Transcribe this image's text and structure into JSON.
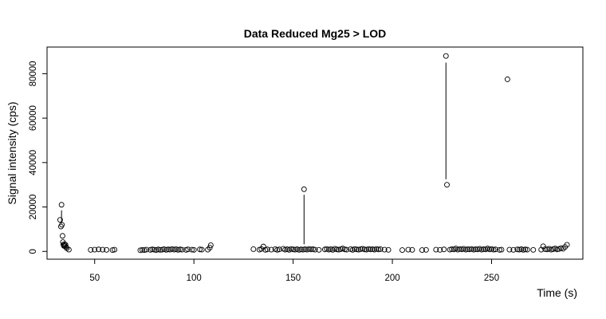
{
  "chart_data": {
    "type": "scatter",
    "title": "Data Reduced Mg25 > LOD",
    "xlabel": "Time (s)",
    "ylabel": "Signal intensity (cps)",
    "xlim": [
      26,
      296
    ],
    "ylim": [
      -3500,
      92000
    ],
    "x_ticks": [
      50,
      100,
      150,
      200,
      250
    ],
    "y_ticks": [
      0,
      20000,
      40000,
      60000,
      80000
    ],
    "grid": false,
    "legend": "none",
    "colors": {
      "points": "#000000",
      "axes": "#000000",
      "background": "#ffffff"
    },
    "points": [
      [
        32.6,
        14200
      ],
      [
        33.0,
        11200
      ],
      [
        33.3,
        21000
      ],
      [
        33.5,
        12000
      ],
      [
        33.8,
        7000
      ],
      [
        34.0,
        4200
      ],
      [
        34.2,
        3000
      ],
      [
        34.5,
        2500
      ],
      [
        34.8,
        3300
      ],
      [
        35.0,
        2400
      ],
      [
        35.3,
        3000
      ],
      [
        35.6,
        1900
      ],
      [
        36.0,
        1400
      ],
      [
        37.0,
        800
      ],
      [
        48,
        700
      ],
      [
        50,
        800
      ],
      [
        52,
        900
      ],
      [
        54,
        800
      ],
      [
        56,
        700
      ],
      [
        59,
        600
      ],
      [
        60,
        800
      ],
      [
        73,
        500
      ],
      [
        74,
        700
      ],
      [
        75,
        600
      ],
      [
        76,
        800
      ],
      [
        78,
        700
      ],
      [
        79,
        900
      ],
      [
        80,
        800
      ],
      [
        81,
        600
      ],
      [
        82,
        900
      ],
      [
        83,
        700
      ],
      [
        84,
        800
      ],
      [
        85,
        1000
      ],
      [
        86,
        700
      ],
      [
        87,
        900
      ],
      [
        88,
        800
      ],
      [
        89,
        1100
      ],
      [
        90,
        800
      ],
      [
        91,
        1000
      ],
      [
        92,
        700
      ],
      [
        93,
        900
      ],
      [
        94,
        800
      ],
      [
        96,
        700
      ],
      [
        97,
        900
      ],
      [
        99,
        800
      ],
      [
        100,
        700
      ],
      [
        103,
        900
      ],
      [
        104,
        800
      ],
      [
        107,
        800
      ],
      [
        108,
        1700
      ],
      [
        108.5,
        2800
      ],
      [
        130,
        1000
      ],
      [
        133,
        800
      ],
      [
        134,
        1100
      ],
      [
        135,
        2200
      ],
      [
        136,
        700
      ],
      [
        137,
        900
      ],
      [
        139,
        800
      ],
      [
        141,
        1000
      ],
      [
        142,
        700
      ],
      [
        143,
        900
      ],
      [
        145,
        1200
      ],
      [
        146,
        800
      ],
      [
        147,
        1000
      ],
      [
        148,
        700
      ],
      [
        149,
        1100
      ],
      [
        150,
        900
      ],
      [
        151,
        800
      ],
      [
        152,
        1000
      ],
      [
        153,
        700
      ],
      [
        154,
        900
      ],
      [
        155,
        800
      ],
      [
        155.5,
        28000
      ],
      [
        156,
        1000
      ],
      [
        157,
        800
      ],
      [
        158,
        1100
      ],
      [
        159,
        900
      ],
      [
        160,
        1000
      ],
      [
        161,
        800
      ],
      [
        163,
        700
      ],
      [
        166,
        900
      ],
      [
        167,
        1100
      ],
      [
        168,
        800
      ],
      [
        169,
        1000
      ],
      [
        170,
        700
      ],
      [
        171,
        1200
      ],
      [
        172,
        900
      ],
      [
        173,
        800
      ],
      [
        174,
        1000
      ],
      [
        175,
        1300
      ],
      [
        176,
        900
      ],
      [
        177,
        800
      ],
      [
        179,
        1000
      ],
      [
        180,
        700
      ],
      [
        181,
        1100
      ],
      [
        182,
        900
      ],
      [
        183,
        800
      ],
      [
        184,
        1000
      ],
      [
        185,
        1200
      ],
      [
        186,
        900
      ],
      [
        187,
        800
      ],
      [
        188,
        1100
      ],
      [
        189,
        900
      ],
      [
        190,
        1000
      ],
      [
        191,
        800
      ],
      [
        192,
        1100
      ],
      [
        193,
        900
      ],
      [
        194,
        1000
      ],
      [
        196,
        800
      ],
      [
        198,
        700
      ],
      [
        205,
        600
      ],
      [
        208,
        800
      ],
      [
        210,
        700
      ],
      [
        215,
        600
      ],
      [
        217,
        700
      ],
      [
        222,
        800
      ],
      [
        224,
        700
      ],
      [
        226,
        900
      ],
      [
        227,
        88000
      ],
      [
        227.5,
        30000
      ],
      [
        229,
        800
      ],
      [
        230,
        1000
      ],
      [
        231,
        900
      ],
      [
        232,
        1300
      ],
      [
        233,
        800
      ],
      [
        234,
        1100
      ],
      [
        235,
        900
      ],
      [
        236,
        1200
      ],
      [
        237,
        800
      ],
      [
        238,
        1000
      ],
      [
        239,
        900
      ],
      [
        240,
        1100
      ],
      [
        241,
        800
      ],
      [
        242,
        1000
      ],
      [
        243,
        900
      ],
      [
        244,
        1200
      ],
      [
        245,
        800
      ],
      [
        246,
        1000
      ],
      [
        247,
        900
      ],
      [
        248,
        1300
      ],
      [
        249,
        900
      ],
      [
        250,
        1100
      ],
      [
        251,
        800
      ],
      [
        252,
        900
      ],
      [
        254,
        700
      ],
      [
        255,
        800
      ],
      [
        258,
        77500
      ],
      [
        259,
        800
      ],
      [
        261,
        700
      ],
      [
        263,
        900
      ],
      [
        264,
        800
      ],
      [
        265,
        1000
      ],
      [
        266,
        700
      ],
      [
        267,
        900
      ],
      [
        268,
        800
      ],
      [
        271,
        700
      ],
      [
        275,
        800
      ],
      [
        276,
        2300
      ],
      [
        277,
        1000
      ],
      [
        278,
        900
      ],
      [
        279,
        1200
      ],
      [
        280,
        800
      ],
      [
        281,
        1000
      ],
      [
        282,
        1300
      ],
      [
        283,
        900
      ],
      [
        284,
        1100
      ],
      [
        285,
        1500
      ],
      [
        286,
        1200
      ],
      [
        287,
        2000
      ],
      [
        288,
        3000
      ]
    ],
    "segments": [
      [
        [
          33.3,
          18500
        ],
        [
          33.3,
          12500
        ]
      ],
      [
        [
          155.5,
          25500
        ],
        [
          155.5,
          3200
        ]
      ],
      [
        [
          227,
          85000
        ],
        [
          227,
          32500
        ]
      ]
    ]
  }
}
